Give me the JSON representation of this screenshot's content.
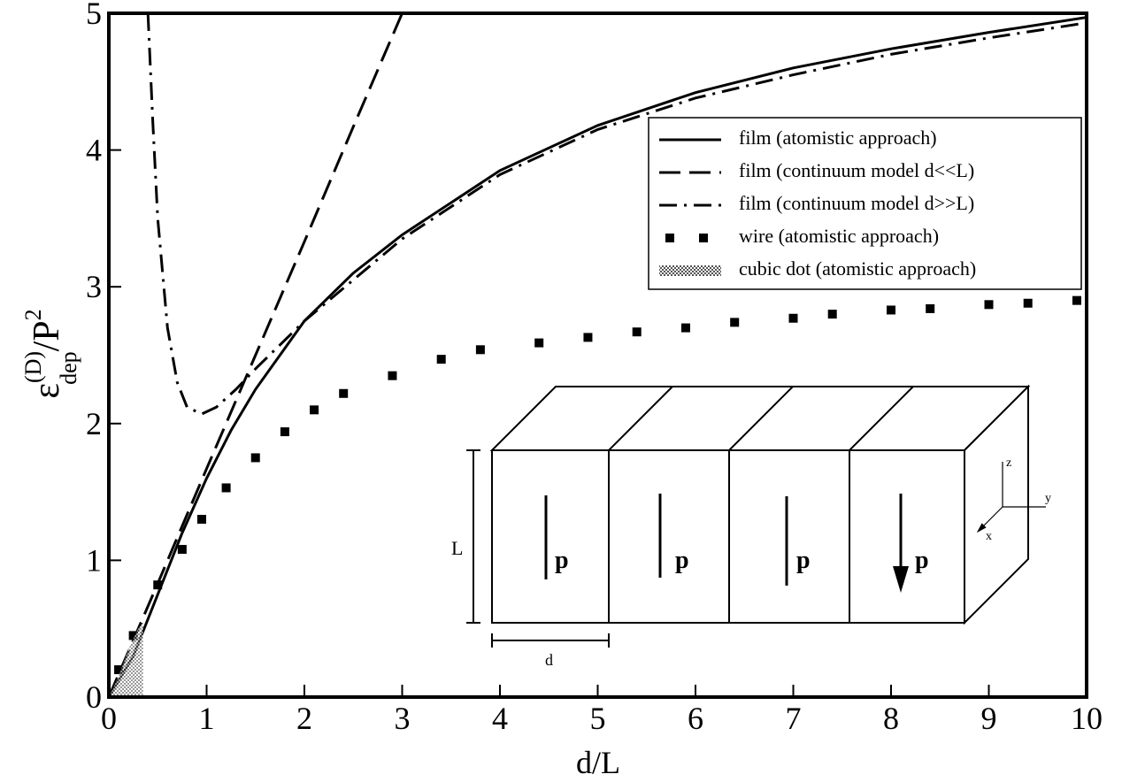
{
  "chart_data": {
    "type": "line",
    "xlabel": "d/L",
    "ylabel": {
      "base": "ε",
      "sup": "(D)",
      "sub": "dep",
      "rest": "/P",
      "sup2": "2"
    },
    "xlim": [
      0,
      10
    ],
    "ylim": [
      0,
      5
    ],
    "xticks": [
      0,
      1,
      2,
      3,
      4,
      5,
      6,
      7,
      8,
      9,
      10
    ],
    "yticks": [
      0,
      1,
      2,
      3,
      4,
      5
    ],
    "legend": "upper right",
    "series": [
      {
        "name": "film (atomistic approach)",
        "color": "#000000",
        "style": "solid",
        "x": [
          0,
          0.25,
          0.5,
          0.75,
          1,
          1.25,
          1.5,
          2,
          2.5,
          3,
          4,
          5,
          6,
          7,
          8,
          9,
          10
        ],
        "values": [
          0,
          0.3,
          0.75,
          1.2,
          1.6,
          1.95,
          2.25,
          2.75,
          3.1,
          3.38,
          3.85,
          4.18,
          4.42,
          4.6,
          4.74,
          4.86,
          4.97
        ]
      },
      {
        "name": "film (continuum model d<<L)",
        "color": "#000000",
        "style": "dashed",
        "x": [
          0,
          0.5,
          1,
          1.5,
          2,
          2.5,
          3
        ],
        "values": [
          0,
          0.83,
          1.67,
          2.5,
          3.33,
          4.17,
          5
        ]
      },
      {
        "name": "film (continuum model d>>L)",
        "color": "#000000",
        "style": "dashdot",
        "x": [
          0.4,
          0.45,
          0.5,
          0.6,
          0.7,
          0.8,
          0.95,
          1.1,
          1.3,
          1.5,
          2,
          3,
          4,
          5,
          6,
          7,
          8,
          9,
          10
        ],
        "values": [
          5,
          4.2,
          3.5,
          2.7,
          2.3,
          2.12,
          2.07,
          2.12,
          2.25,
          2.4,
          2.75,
          3.35,
          3.82,
          4.15,
          4.38,
          4.55,
          4.7,
          4.82,
          4.93
        ]
      },
      {
        "name": "wire (atomistic approach)",
        "color": "#000000",
        "style": "squares",
        "x": [
          0.1,
          0.25,
          0.5,
          0.75,
          0.95,
          1.2,
          1.5,
          1.8,
          2.1,
          2.4,
          2.9,
          3.4,
          3.8,
          4.4,
          4.9,
          5.4,
          5.9,
          6.4,
          7,
          7.4,
          8,
          8.4,
          9,
          9.4,
          9.9
        ],
        "values": [
          0.2,
          0.45,
          0.82,
          1.08,
          1.3,
          1.53,
          1.75,
          1.94,
          2.1,
          2.22,
          2.35,
          2.47,
          2.54,
          2.59,
          2.63,
          2.67,
          2.7,
          2.74,
          2.77,
          2.8,
          2.83,
          2.84,
          2.87,
          2.88,
          2.9
        ]
      },
      {
        "name": "cubic dot (atomistic approach)",
        "color": "#777777",
        "style": "hatch",
        "x": [
          0,
          0.1,
          0.2,
          0.3,
          0.35
        ],
        "values": [
          0,
          0.15,
          0.35,
          0.5,
          0.55
        ]
      }
    ],
    "annotations": [
      "L",
      "d",
      "p",
      "p",
      "p",
      "p",
      "z",
      "y",
      "x"
    ]
  }
}
